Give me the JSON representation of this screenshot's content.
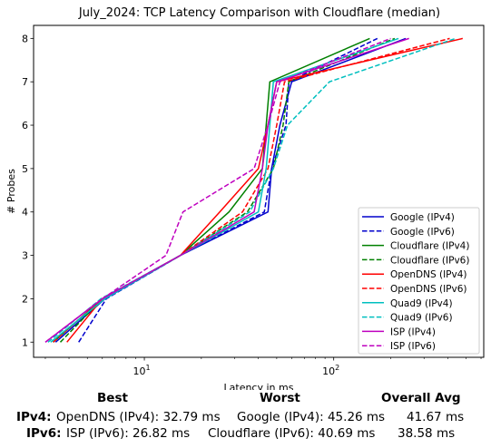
{
  "chart_data": {
    "type": "line",
    "title": "July_2024: TCP Latency Comparison with Cloudflare (median)",
    "xlabel": "Latency in ms",
    "ylabel": "# Probes",
    "xscale": "log",
    "xlim": [
      2.6,
      620
    ],
    "ylim": [
      0.65,
      8.3
    ],
    "x_ticks": [
      {
        "value": 10,
        "label": "10",
        "exp": "1"
      },
      {
        "value": 100,
        "label": "10",
        "exp": "2"
      }
    ],
    "y_ticks": [
      1,
      2,
      3,
      4,
      5,
      6,
      7,
      8
    ],
    "legend_position": "lower right",
    "series": [
      {
        "name": "Google (IPv4)",
        "color": "#0000cc",
        "dash": "solid",
        "x": [
          3.4,
          6.2,
          15.5,
          45,
          47,
          52,
          60,
          240
        ],
        "y": [
          1,
          2,
          3,
          4,
          5,
          6,
          7,
          8
        ]
      },
      {
        "name": "Google (IPv6)",
        "color": "#0000cc",
        "dash": "dashed",
        "x": [
          4.5,
          6.3,
          15.5,
          43,
          47,
          56,
          58,
          170
        ],
        "y": [
          1,
          2,
          3,
          4,
          5,
          6,
          7,
          8
        ]
      },
      {
        "name": "Cloudflare (IPv4)",
        "color": "#008000",
        "dash": "solid",
        "x": [
          3.3,
          6.0,
          15.5,
          28,
          42,
          44,
          46,
          155
        ],
        "y": [
          1,
          2,
          3,
          4,
          5,
          6,
          7,
          8
        ]
      },
      {
        "name": "Cloudflare (IPv6)",
        "color": "#008000",
        "dash": "dashed",
        "x": [
          3.6,
          6.0,
          15.5,
          35,
          48,
          54,
          58,
          210
        ],
        "y": [
          1,
          2,
          3,
          4,
          5,
          6,
          7,
          8
        ]
      },
      {
        "name": "OpenDNS (IPv4)",
        "color": "#ff0000",
        "dash": "solid",
        "x": [
          3.9,
          6.0,
          15.5,
          25,
          40,
          45,
          50,
          480
        ],
        "y": [
          1,
          2,
          3,
          4,
          5,
          6,
          7,
          8
        ]
      },
      {
        "name": "OpenDNS (IPv6)",
        "color": "#ff0000",
        "dash": "dashed",
        "x": [
          3.3,
          6.0,
          15.5,
          33,
          45,
          50,
          55,
          410
        ],
        "y": [
          1,
          2,
          3,
          4,
          5,
          6,
          7,
          8
        ]
      },
      {
        "name": "Quad9 (IPv4)",
        "color": "#00bfbf",
        "dash": "solid",
        "x": [
          3.2,
          6.2,
          15.5,
          40,
          44,
          46,
          48,
          220
        ],
        "y": [
          1,
          2,
          3,
          4,
          5,
          6,
          7,
          8
        ]
      },
      {
        "name": "Quad9 (IPv6)",
        "color": "#00bfbf",
        "dash": "dashed",
        "x": [
          3.1,
          5.9,
          15.5,
          36,
          48,
          57,
          95,
          440
        ],
        "y": [
          1,
          2,
          3,
          4,
          5,
          6,
          7,
          8
        ]
      },
      {
        "name": "ISP (IPv4)",
        "color": "#bf00bf",
        "dash": "solid",
        "x": [
          3.0,
          6.0,
          15.5,
          38,
          42,
          45,
          50,
          250
        ],
        "y": [
          1,
          2,
          3,
          4,
          5,
          6,
          7,
          8
        ]
      },
      {
        "name": "ISP (IPv6)",
        "color": "#bf00bf",
        "dash": "dashed",
        "x": [
          3.0,
          6.0,
          13,
          16,
          38,
          45,
          52,
          200
        ],
        "y": [
          1,
          2,
          3,
          4,
          5,
          6,
          7,
          8
        ]
      }
    ]
  },
  "summary": {
    "headers": {
      "best": "Best",
      "worst": "Worst",
      "overall": "Overall Avg"
    },
    "rows": [
      {
        "label": "IPv4:",
        "best": "OpenDNS (IPv4): 32.79 ms",
        "worst": "Google (IPv4): 45.26 ms",
        "avg": "41.67 ms"
      },
      {
        "label": "IPv6:",
        "best": "ISP (IPv6): 26.82 ms",
        "worst": "Cloudflare (IPv6): 40.69 ms",
        "avg": "38.58 ms"
      }
    ]
  }
}
